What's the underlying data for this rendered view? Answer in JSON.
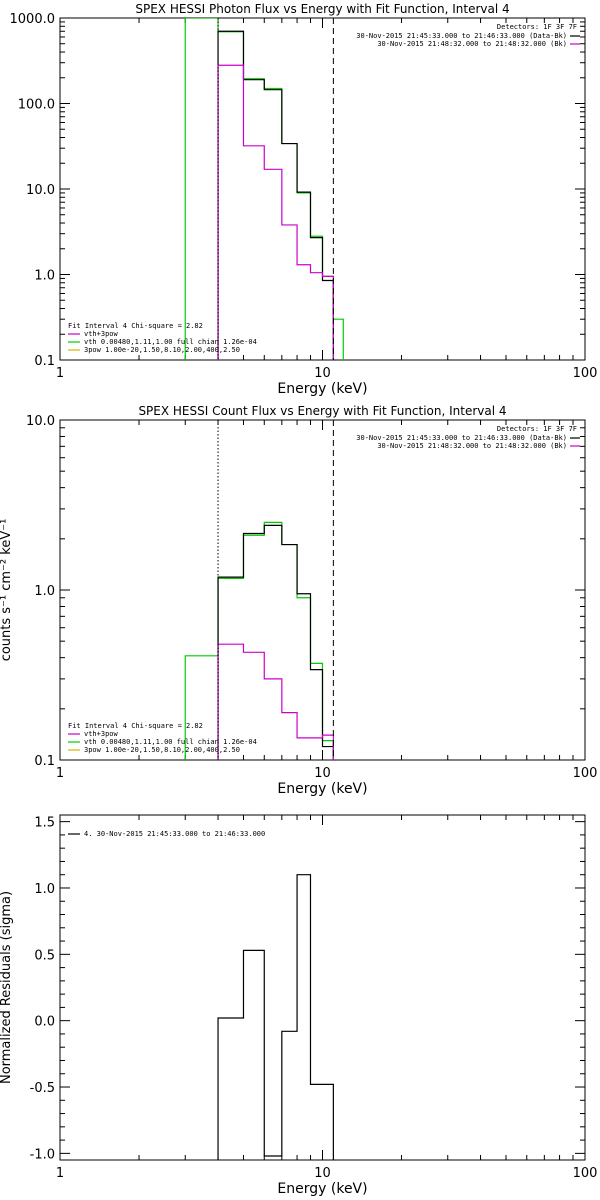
{
  "chart_data": [
    {
      "type": "line",
      "title": "SPEX HESSI Photon Flux vs Energy with Fit Function, Interval 4",
      "xlabel": "Energy (keV)",
      "ylabel": "",
      "xscale": "log",
      "yscale": "log",
      "xlim": [
        1,
        100
      ],
      "ylim": [
        0.1,
        1000
      ],
      "x_ticks": [
        {
          "v": 1,
          "label": "1"
        },
        {
          "v": 10,
          "label": "10"
        },
        {
          "v": 100,
          "label": "100"
        }
      ],
      "y_ticks": [
        {
          "v": 0.1,
          "label": "0.1"
        },
        {
          "v": 1,
          "label": "1.0"
        },
        {
          "v": 10,
          "label": "10.0"
        },
        {
          "v": 100,
          "label": "100.0"
        },
        {
          "v": 1000,
          "label": "1000.0"
        }
      ],
      "vlines": [
        {
          "x": 4.0,
          "style": "dotted",
          "color": "#000000"
        },
        {
          "x": 11.0,
          "style": "dashed",
          "color": "#000000"
        }
      ],
      "legend_topright": {
        "detectors": "Detectors: 1F 3F 7F",
        "items": [
          {
            "text": "30-Nov-2015 21:45:33.000 to 21:46:33.000 (Data-Bk)",
            "color": "#000000"
          },
          {
            "text": "30-Nov-2015 21:48:32.000 to 21:48:32.000 (Bk)",
            "color": "#cc00cc"
          }
        ]
      },
      "legend_bottomleft": {
        "header": "Fit Interval 4   Chi-square = 2.82",
        "items": [
          {
            "text": "vth+3pow",
            "color": "#cc00cc"
          },
          {
            "text": "vth 0.00480,1.11,1.00  full chian 1.26e-04",
            "color": "#00cc00"
          },
          {
            "text": "3pow 1.00e-20,1.50,8.10,2.00,400,2.50",
            "color": "#d4b400"
          }
        ]
      },
      "series": [
        {
          "color": "#00cc00",
          "edges": [
            3.0,
            4.0,
            5.0,
            6.0,
            7.0,
            8.0,
            9.0,
            10.0,
            11.0,
            12.0
          ],
          "values": [
            100000,
            690,
            195,
            150,
            34,
            9.0,
            2.8,
            0.95,
            0.3
          ]
        },
        {
          "color": "#000000",
          "edges": [
            4.0,
            5.0,
            6.0,
            7.0,
            8.0,
            9.0,
            10.0,
            11.0
          ],
          "values": [
            700,
            190,
            145,
            34,
            9.2,
            2.7,
            0.85
          ]
        },
        {
          "color": "#cc00cc",
          "edges": [
            4.0,
            5.0,
            6.0,
            7.0,
            8.0,
            9.0,
            10.0,
            11.0
          ],
          "values": [
            280,
            32,
            17,
            3.8,
            1.3,
            1.05,
            0.95
          ]
        }
      ]
    },
    {
      "type": "line",
      "title": "SPEX HESSI Count Flux vs Energy with Fit Function, Interval 4",
      "xlabel": "Energy (keV)",
      "ylabel": "counts s⁻¹ cm⁻² keV⁻¹",
      "xscale": "log",
      "yscale": "log",
      "xlim": [
        1,
        100
      ],
      "ylim": [
        0.1,
        10
      ],
      "x_ticks": [
        {
          "v": 1,
          "label": "1"
        },
        {
          "v": 10,
          "label": "10"
        },
        {
          "v": 100,
          "label": "100"
        }
      ],
      "y_ticks": [
        {
          "v": 0.1,
          "label": "0.1"
        },
        {
          "v": 1,
          "label": "1.0"
        },
        {
          "v": 10,
          "label": "10.0"
        }
      ],
      "vlines": [
        {
          "x": 4.0,
          "style": "dotted",
          "color": "#000000"
        },
        {
          "x": 11.0,
          "style": "dashed",
          "color": "#000000"
        }
      ],
      "legend_topright": {
        "detectors": "Detectors: 1F 3F 7F",
        "items": [
          {
            "text": "30-Nov-2015 21:45:33.000 to 21:46:33.000 (Data-Bk)",
            "color": "#000000"
          },
          {
            "text": "30-Nov-2015 21:48:32.000 to 21:48:32.000 (Bk)",
            "color": "#cc00cc"
          }
        ]
      },
      "legend_bottomleft": {
        "header": "Fit Interval 4   Chi-square = 2.82",
        "items": [
          {
            "text": "vth+3pow",
            "color": "#cc00cc"
          },
          {
            "text": "vth 0.00480,1.11,1.00  full chian 1.26e-04",
            "color": "#00cc00"
          },
          {
            "text": "3pow 1.00e-20,1.50,8.10,2.00,400,2.50",
            "color": "#d4b400"
          }
        ]
      },
      "series": [
        {
          "color": "#00cc00",
          "edges": [
            3.0,
            4.0,
            5.0,
            6.0,
            7.0,
            8.0,
            9.0,
            10.0,
            11.0
          ],
          "values": [
            0.41,
            1.17,
            2.1,
            2.5,
            1.85,
            0.9,
            0.37,
            0.13
          ]
        },
        {
          "color": "#000000",
          "edges": [
            4.0,
            5.0,
            6.0,
            7.0,
            8.0,
            9.0,
            10.0,
            11.0
          ],
          "values": [
            1.19,
            2.15,
            2.4,
            1.85,
            0.95,
            0.34,
            0.12
          ]
        },
        {
          "color": "#cc00cc",
          "edges": [
            4.0,
            5.0,
            6.0,
            7.0,
            8.0,
            9.0,
            10.0,
            11.0
          ],
          "values": [
            0.48,
            0.43,
            0.3,
            0.19,
            0.135,
            0.135,
            0.14
          ]
        }
      ]
    },
    {
      "type": "line",
      "title": "",
      "xlabel": "Energy (keV)",
      "ylabel": "Normalized Residuals (sigma)",
      "xscale": "log",
      "yscale": "linear",
      "xlim": [
        1,
        100
      ],
      "ylim": [
        -1.05,
        1.55
      ],
      "x_ticks": [
        {
          "v": 1,
          "label": "1"
        },
        {
          "v": 10,
          "label": "10"
        },
        {
          "v": 100,
          "label": "100"
        }
      ],
      "y_ticks": [
        {
          "v": -1.0,
          "label": "-1.0"
        },
        {
          "v": -0.5,
          "label": "-0.5"
        },
        {
          "v": 0.0,
          "label": "0.0"
        },
        {
          "v": 0.5,
          "label": "0.5"
        },
        {
          "v": 1.0,
          "label": "1.0"
        },
        {
          "v": 1.5,
          "label": "1.5"
        }
      ],
      "vlines": [],
      "legend_topleft": {
        "items": [
          {
            "text": "4. 30-Nov-2015 21:45:33.000 to 21:46:33.000",
            "color": "#000000"
          }
        ]
      },
      "series": [
        {
          "color": "#000000",
          "edges": [
            4.0,
            5.0,
            6.0,
            7.0,
            8.0,
            9.0,
            10.0,
            11.0
          ],
          "values": [
            0.02,
            0.53,
            -1.02,
            -0.08,
            1.1,
            -0.48,
            -0.48
          ],
          "baseline": -1.05
        }
      ]
    }
  ]
}
